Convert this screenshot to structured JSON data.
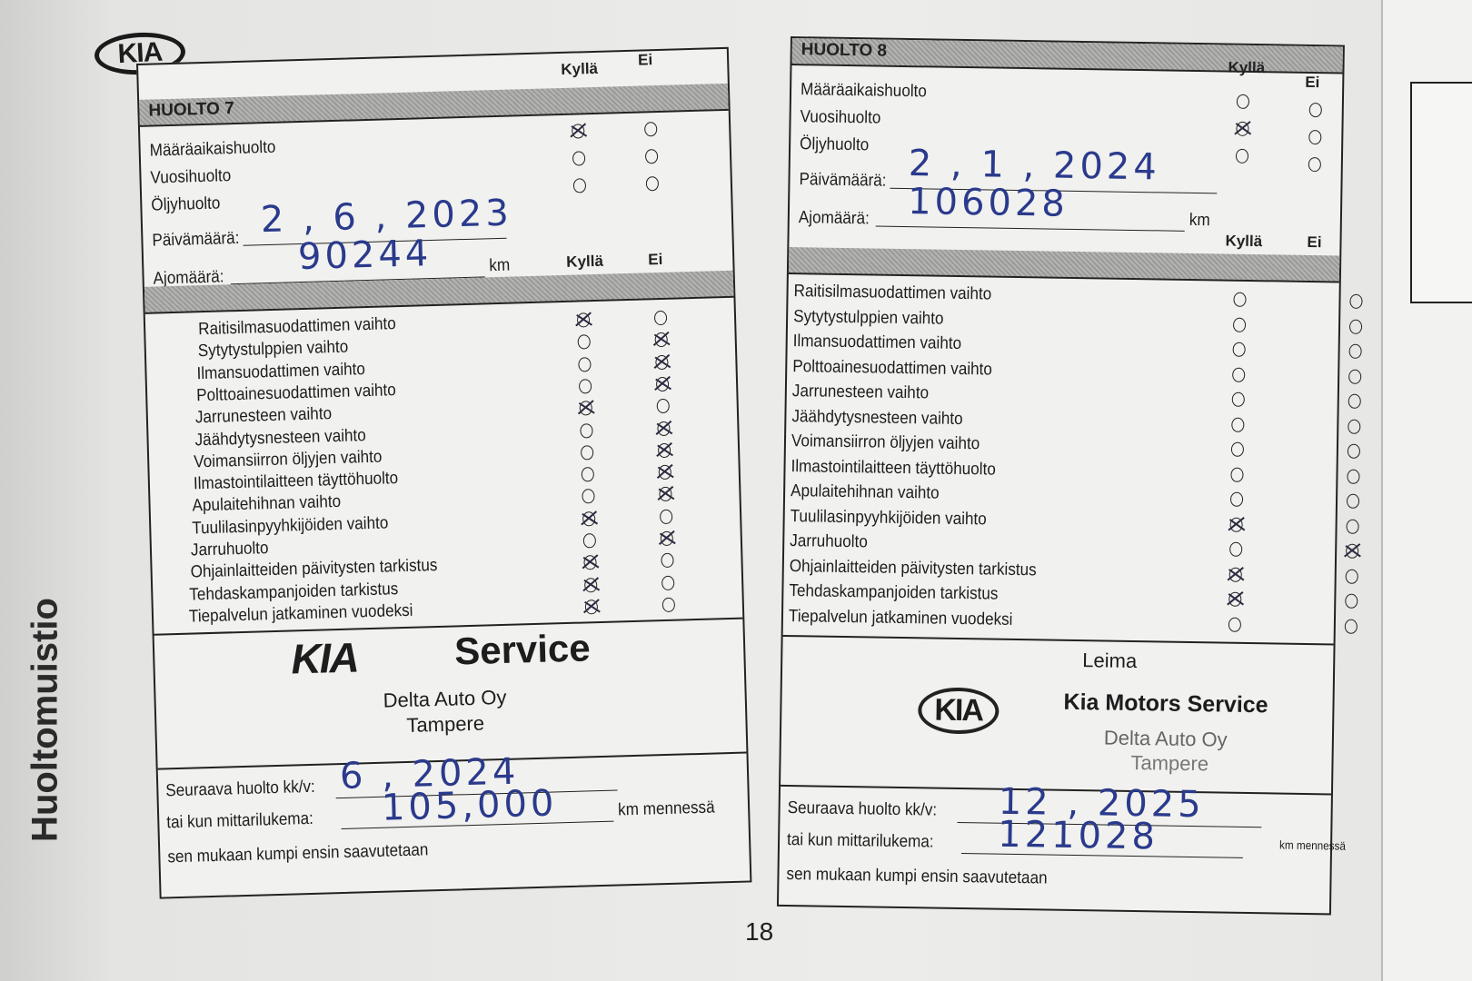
{
  "brand_logo": "KIA",
  "side_title": "Huoltomuistio",
  "page_number": "18",
  "colors": {
    "ink": "#2a3a8c",
    "header_fill": "#a8a8a6",
    "paper": "#ececea"
  },
  "left_panel": {
    "title": "HUOLTO 7",
    "yes_label": "Kyllä",
    "no_label": "Ei",
    "top_items": [
      {
        "label": "Määräaikaishuolto",
        "check": "kylla"
      },
      {
        "label": "Vuosihuolto",
        "check": ""
      },
      {
        "label": "Öljyhuolto",
        "check": ""
      }
    ],
    "date_label": "Päivämäärä:",
    "date_value": "2 , 6 , 2023",
    "mileage_label": "Ajomäärä:",
    "mileage_value": "90244",
    "km_unit": "km",
    "items": [
      {
        "label": "Raitisilmasuodattimen vaihto",
        "check": "kylla"
      },
      {
        "label": "Sytytystulppien vaihto",
        "check": "ei"
      },
      {
        "label": "Ilmansuodattimen vaihto",
        "check": "ei"
      },
      {
        "label": "Polttoainesuodattimen vaihto",
        "check": "ei"
      },
      {
        "label": "Jarrunesteen vaihto",
        "check": "kylla"
      },
      {
        "label": "Jäähdytysnesteen vaihto",
        "check": "ei"
      },
      {
        "label": "Voimansiirron öljyjen vaihto",
        "check": "ei"
      },
      {
        "label": "Ilmastointilaitteen täyttöhuolto",
        "check": "ei"
      },
      {
        "label": "Apulaitehihnan vaihto",
        "check": "ei"
      },
      {
        "label": "Tuulilasinpyyhkijöiden vaihto",
        "check": "kylla"
      },
      {
        "label": "Jarruhuolto",
        "check": "ei"
      },
      {
        "label": "Ohjainlaitteiden päivitysten tarkistus",
        "check": "kylla"
      },
      {
        "label": "Tehdaskampanjoiden tarkistus",
        "check": "kylla"
      },
      {
        "label": "Tiepalvelun jatkaminen vuodeksi",
        "check": "kylla"
      }
    ],
    "stamp": {
      "logo": "KIA",
      "service": "Service",
      "dealer": "Delta Auto Oy",
      "city": "Tampere"
    },
    "next_label": "Seuraava huolto kk/v:",
    "next_value": "6 , 2024",
    "meter_label": "tai kun mittarilukema:",
    "meter_value": "105,000",
    "meter_unit": "km mennessä",
    "footer": "sen mukaan kumpi ensin saavutetaan"
  },
  "right_panel": {
    "title": "HUOLTO 8",
    "yes_label": "Kyllä",
    "no_label": "Ei",
    "top_items": [
      {
        "label": "Määräaikaishuolto",
        "check": ""
      },
      {
        "label": "Vuosihuolto",
        "check": "kylla"
      },
      {
        "label": "Öljyhuolto",
        "check": ""
      }
    ],
    "date_label": "Päivämäärä:",
    "date_value": "2 , 1 , 2024",
    "mileage_label": "Ajomäärä:",
    "mileage_value": "106028",
    "km_unit": "km",
    "items": [
      {
        "label": "Raitisilmasuodattimen vaihto",
        "check": ""
      },
      {
        "label": "Sytytystulppien vaihto",
        "check": ""
      },
      {
        "label": "Ilmansuodattimen vaihto",
        "check": ""
      },
      {
        "label": "Polttoainesuodattimen vaihto",
        "check": ""
      },
      {
        "label": "Jarrunesteen vaihto",
        "check": ""
      },
      {
        "label": "Jäähdytysnesteen vaihto",
        "check": ""
      },
      {
        "label": "Voimansiirron öljyjen vaihto",
        "check": ""
      },
      {
        "label": "Ilmastointilaitteen täyttöhuolto",
        "check": ""
      },
      {
        "label": "Apulaitehihnan vaihto",
        "check": ""
      },
      {
        "label": "Tuulilasinpyyhkijöiden vaihto",
        "check": "kylla"
      },
      {
        "label": "Jarruhuolto",
        "check": "ei"
      },
      {
        "label": "Ohjainlaitteiden päivitysten tarkistus",
        "check": "kylla"
      },
      {
        "label": "Tehdaskampanjoiden tarkistus",
        "check": "kylla"
      },
      {
        "label": "Tiepalvelun jatkaminen vuodeksi",
        "check": ""
      }
    ],
    "stamp_heading": "Leima",
    "stamp": {
      "logo": "KIA",
      "service": "Kia Motors Service",
      "dealer": "Delta Auto Oy",
      "city": "Tampere"
    },
    "next_label": "Seuraava huolto kk/v:",
    "next_value": "12 , 2025",
    "meter_label": "tai kun mittarilukema:",
    "meter_value": "121028",
    "meter_unit": "km mennessä",
    "footer": "sen mukaan kumpi ensin saavutetaan"
  }
}
